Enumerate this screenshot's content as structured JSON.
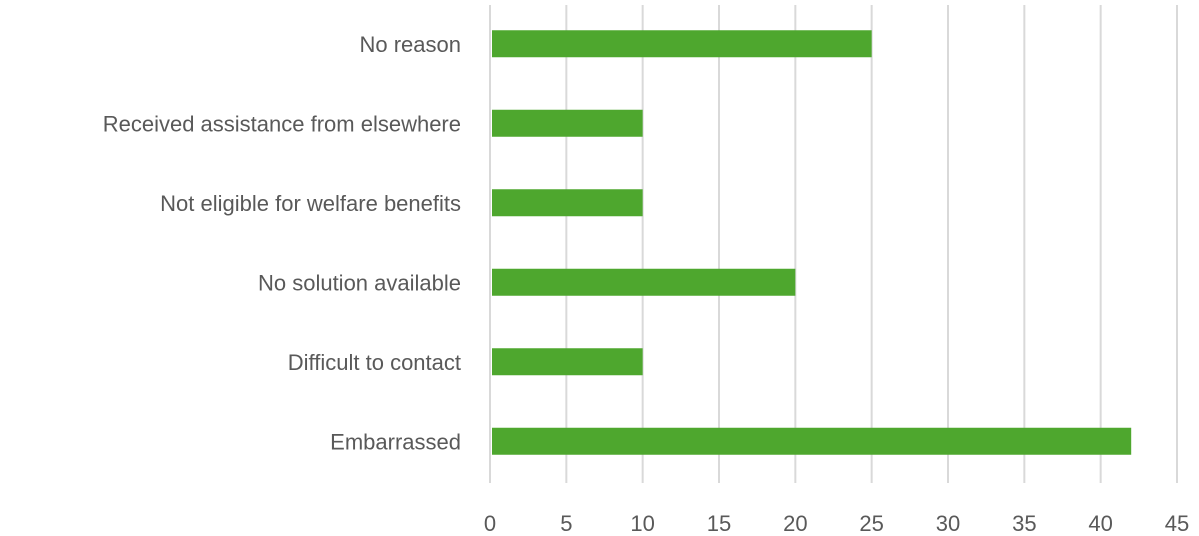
{
  "chart_data": {
    "type": "bar",
    "orientation": "horizontal",
    "title": "",
    "xlabel": "",
    "ylabel": "",
    "categories": [
      "No reason",
      "Received assistance from elsewhere",
      "Not eligible for welfare benefits",
      "No solution available",
      "Difficult to contact",
      "Embarrassed"
    ],
    "values": [
      25,
      10,
      10,
      20,
      10,
      42
    ],
    "xlim": [
      0,
      45
    ],
    "xticks": [
      0,
      5,
      10,
      15,
      20,
      25,
      30,
      35,
      40,
      45
    ],
    "grid": "vertical",
    "legend": "none",
    "bar_color": "#4ea72e",
    "grid_color": "#d9d9d9",
    "text_color": "#595959"
  }
}
